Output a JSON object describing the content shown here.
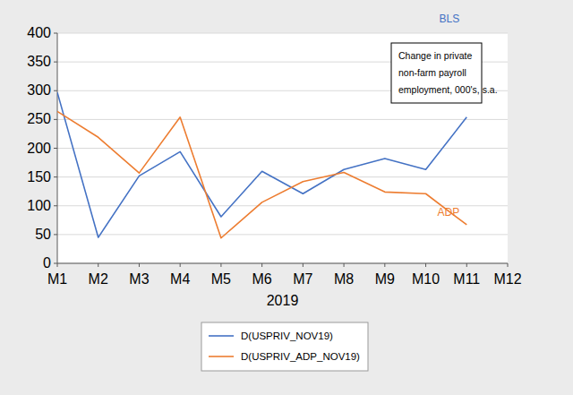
{
  "chart_data": {
    "type": "line",
    "x_label": "2019",
    "note": [
      "Change in private",
      "non-farm payroll",
      "employment, 000's, s.a."
    ],
    "categories": [
      "M1",
      "M2",
      "M3",
      "M4",
      "M5",
      "M6",
      "M7",
      "M8",
      "M9",
      "M10",
      "M11",
      "M12"
    ],
    "series": [
      {
        "name": "D(USPRIV_NOV19)",
        "label": "BLS",
        "color": "#4472c4",
        "values": [
          297,
          45,
          152,
          194,
          81,
          160,
          121,
          163,
          182,
          163,
          254,
          null
        ]
      },
      {
        "name": "D(USPRIV_ADP_NOV19)",
        "label": "ADP",
        "color": "#ed7d31",
        "values": [
          264,
          219,
          157,
          254,
          44,
          106,
          142,
          158,
          124,
          121,
          67,
          null
        ]
      }
    ],
    "ylim": [
      0,
      400
    ],
    "yticks": [
      0,
      50,
      100,
      150,
      200,
      250,
      300,
      350,
      400
    ],
    "grid": true,
    "legend": "bottom"
  }
}
